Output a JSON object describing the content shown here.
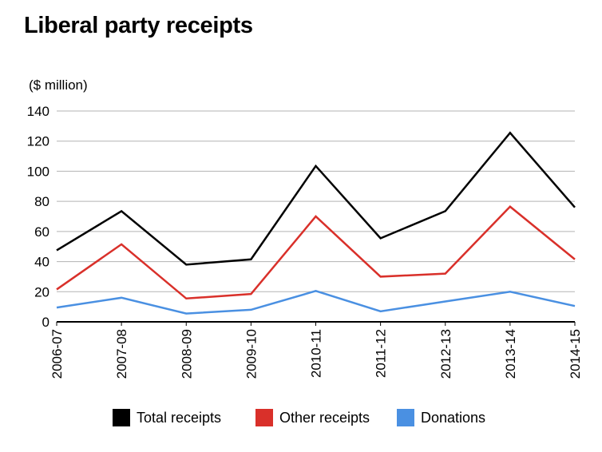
{
  "title": "Liberal party receipts",
  "chart_data": {
    "type": "line",
    "title": "Liberal party receipts",
    "ylabel": "($ million)",
    "xlabel": "",
    "categories": [
      "2006-07",
      "2007-08",
      "2008-09",
      "2009-10",
      "2010-11",
      "2011-12",
      "2012-13",
      "2013-14",
      "2014-15"
    ],
    "yticks": [
      "0",
      "20",
      "40",
      "60",
      "80",
      "100",
      "120",
      "140"
    ],
    "ylim": [
      0,
      140
    ],
    "grid": true,
    "legend_position": "bottom",
    "series": [
      {
        "name": "Total receipts",
        "color": "#000000",
        "values": [
          47.5,
          73.5,
          38,
          41.5,
          103.5,
          55.5,
          73.5,
          125.5,
          76
        ]
      },
      {
        "name": "Other receipts",
        "color": "#d9302a",
        "values": [
          21.5,
          51.5,
          15.5,
          18.5,
          70,
          30,
          32,
          76.5,
          41.5
        ]
      },
      {
        "name": "Donations",
        "color": "#4a90e2",
        "values": [
          9.5,
          16,
          5.5,
          8,
          20.5,
          7,
          13.5,
          20,
          10.5
        ]
      }
    ]
  }
}
